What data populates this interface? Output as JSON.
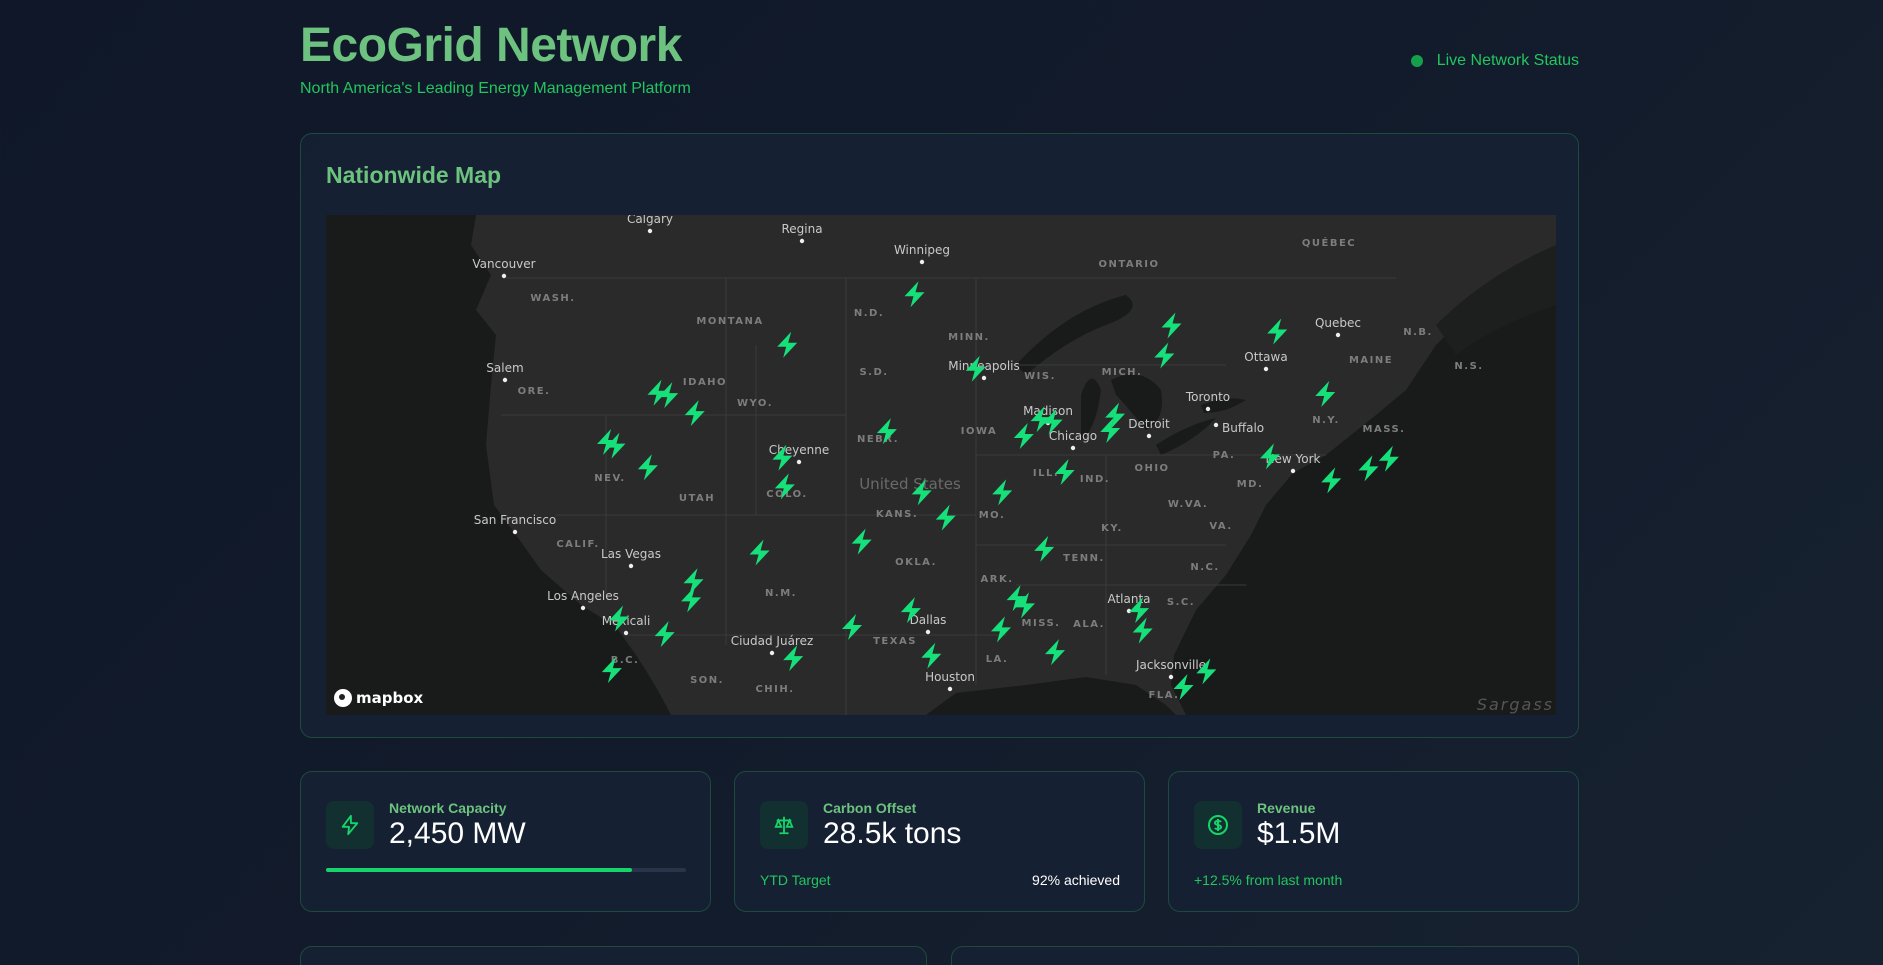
{
  "header": {
    "title": "EcoGrid Network",
    "subtitle": "North America's Leading Energy Management Platform",
    "status": "Live Network Status"
  },
  "map": {
    "title": "Nationwide Map",
    "attribution": "mapbox",
    "ocean_label": "Sargass",
    "country_label": "United States",
    "marker_icon": "lightning-bolt-icon",
    "marker_color": "#16e07a",
    "cities": [
      "Calgary",
      "Regina",
      "Winnipeg",
      "Vancouver",
      "Salem",
      "San Francisco",
      "Las Vegas",
      "Los Angeles",
      "Mexicali",
      "Ciudad Juárez",
      "Cheyenne",
      "Minneapolis",
      "Madison",
      "Chicago",
      "Detroit",
      "Toronto",
      "Buffalo",
      "Ottawa",
      "Quebec",
      "New York",
      "Dallas",
      "Houston",
      "Atlanta",
      "Jacksonville"
    ],
    "regions": [
      "WASH.",
      "MONTANA",
      "N.D.",
      "ORE.",
      "IDAHO",
      "WYO.",
      "S.D.",
      "NEBR.",
      "NEV.",
      "UTAH",
      "COLO.",
      "KANS.",
      "CALIF.",
      "OKLA.",
      "N.M.",
      "TEXAS",
      "SON.",
      "CHIH.",
      "B.C.",
      "MINN.",
      "WIS.",
      "IOWA",
      "ILL.",
      "MO.",
      "IND.",
      "OHIO",
      "MICH.",
      "ONTARIO",
      "QUÉBEC",
      "N.B.",
      "MAINE",
      "N.S.",
      "N.Y.",
      "MASS.",
      "PA.",
      "MD.",
      "W.VA.",
      "VA.",
      "KY.",
      "TENN.",
      "N.C.",
      "ARK.",
      "S.C.",
      "MISS.",
      "ALA.",
      "LA.",
      "FLA."
    ]
  },
  "stats": [
    {
      "label": "Network Capacity",
      "value": "2,450 MW",
      "icon": "lightning-bolt-icon",
      "progress_percent": 85
    },
    {
      "label": "Carbon Offset",
      "value": "28.5k tons",
      "icon": "scale-icon",
      "footer_left": "YTD Target",
      "footer_right": "92% achieved"
    },
    {
      "label": "Revenue",
      "value": "$1.5M",
      "icon": "dollar-circle-icon",
      "footer_left": "+12.5% from last month"
    }
  ],
  "colors": {
    "accent": "#22c55e",
    "heading": "#6cc27e",
    "background": "#0f1729"
  }
}
